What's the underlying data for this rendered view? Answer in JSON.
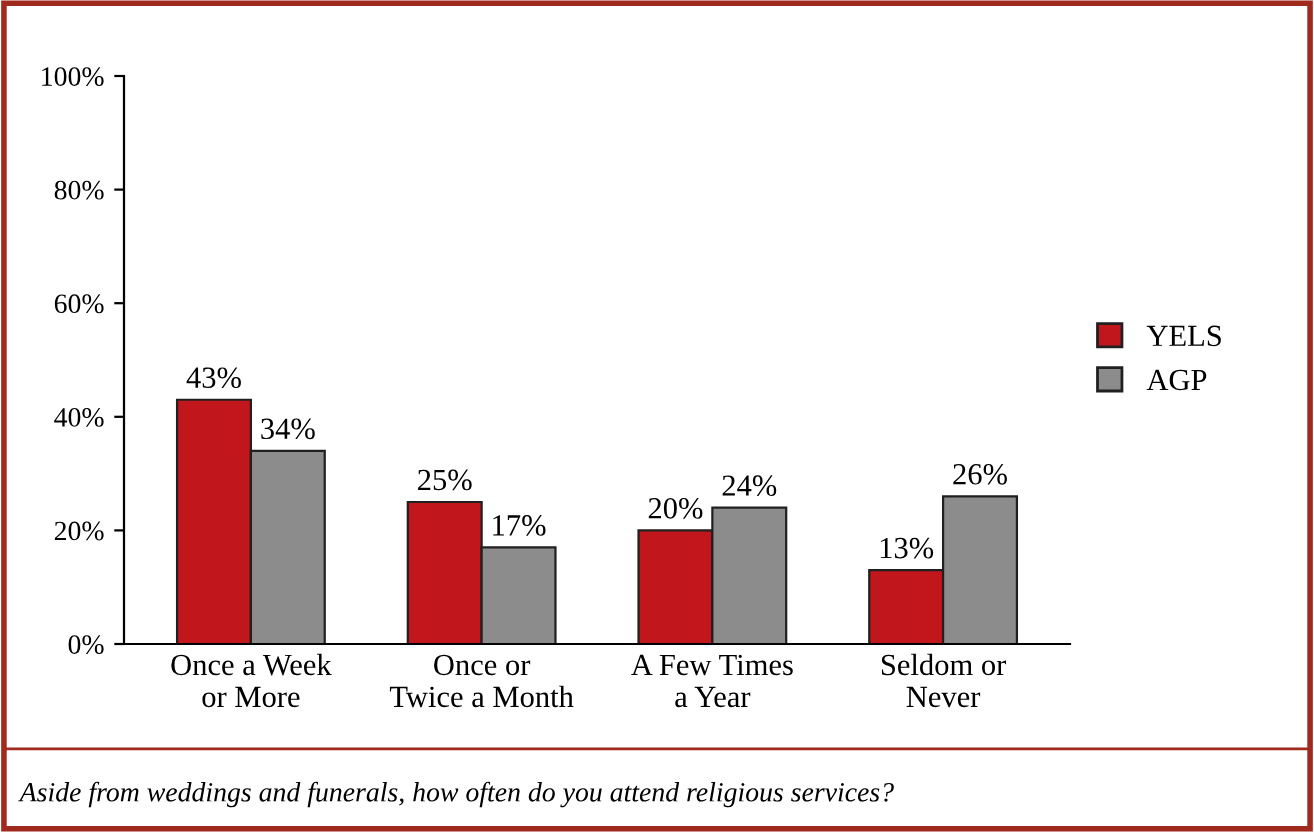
{
  "chart_data": {
    "type": "bar",
    "categories": [
      "Once a Week\nor More",
      "Once or\nTwice a Month",
      "A Few Times\na Year",
      "Seldom or\nNever"
    ],
    "series": [
      {
        "name": "YELS",
        "color": "#c0161c",
        "values": [
          43,
          25,
          20,
          13
        ]
      },
      {
        "name": "AGP",
        "color": "#8c8c8c",
        "values": [
          34,
          17,
          24,
          26
        ]
      }
    ],
    "ylim": [
      0,
      100
    ],
    "yticks": [
      {
        "value": 0,
        "label": "0%"
      },
      {
        "value": 20,
        "label": "20%"
      },
      {
        "value": 40,
        "label": "40%"
      },
      {
        "value": 60,
        "label": "60%"
      },
      {
        "value": 80,
        "label": "80%"
      },
      {
        "value": 100,
        "label": "100%"
      }
    ],
    "value_labels": [
      [
        "43%",
        "25%",
        "20%",
        "13%"
      ],
      [
        "34%",
        "17%",
        "24%",
        "26%"
      ]
    ],
    "annotations": [
      "Aside from weddings and funerals, how often do you attend religious services?"
    ],
    "legend": "right",
    "grid": false
  }
}
